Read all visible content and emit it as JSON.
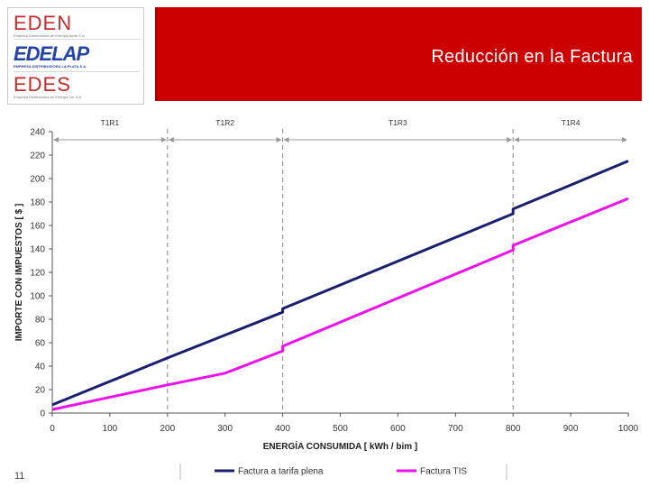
{
  "header": {
    "title": "Reducción en la Factura",
    "logos": [
      {
        "name": "EDEN",
        "subtitle": "Empresa Distribuidora de Energía Norte S.A."
      },
      {
        "name": "EDELAP",
        "subtitle": "EMPRESA DISTRIBUIDORA LA PLATA S.A."
      },
      {
        "name": "EDES",
        "subtitle": "Empresa Distribuidora de Energía Sur S.A."
      }
    ]
  },
  "footer": {
    "page_number": "11"
  },
  "colors": {
    "banner": "#cc0000",
    "series_full": "#1b1f6e",
    "series_tis": "#ee11ee"
  },
  "chart_data": {
    "type": "line",
    "title": "",
    "xlabel": "ENERGÍA CONSUMIDA  [ kWh / bim ]",
    "ylabel": "IMPORTE CON IMPUESTOS  [ $ ]",
    "xlim": [
      0,
      1000
    ],
    "ylim": [
      0,
      240
    ],
    "xticks": [
      0,
      100,
      200,
      300,
      400,
      500,
      600,
      700,
      800,
      900,
      1000
    ],
    "yticks": [
      0,
      20,
      40,
      60,
      80,
      100,
      120,
      140,
      160,
      180,
      200,
      220,
      240
    ],
    "regions": [
      {
        "label": "T1R1",
        "from": 0,
        "to": 200
      },
      {
        "label": "T1R2",
        "from": 200,
        "to": 400
      },
      {
        "label": "T1R3",
        "from": 400,
        "to": 800
      },
      {
        "label": "T1R4",
        "from": 800,
        "to": 1000
      }
    ],
    "boundaries": [
      200,
      400,
      800
    ],
    "series": [
      {
        "name": "Factura a tarifa plena",
        "color": "#1b1f6e",
        "x": [
          0,
          200,
          400,
          400,
          800,
          800,
          1000
        ],
        "y": [
          7,
          47,
          86,
          89,
          170,
          174,
          215
        ]
      },
      {
        "name": "Factura TIS",
        "color": "#ee11ee",
        "x": [
          0,
          200,
          300,
          400,
          400,
          800,
          800,
          1000
        ],
        "y": [
          3,
          24,
          34,
          53,
          57,
          139,
          143,
          183
        ]
      }
    ]
  }
}
